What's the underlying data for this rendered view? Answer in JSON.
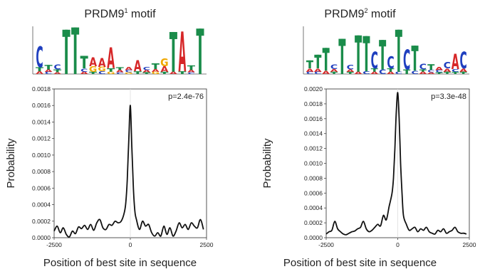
{
  "colors": {
    "A": "#d62728",
    "C": "#1f3fbf",
    "G": "#f0a800",
    "T": "#1a8c4a",
    "line": "#111111",
    "axis": "#444444"
  },
  "chart_data": [
    {
      "type": "line",
      "motif_title": {
        "base": "PRDM9",
        "sup": "1",
        "rest": " motif"
      },
      "motif_letters": [
        {
          "char": "C",
          "h": 0.95,
          "below": [
            [
              "T",
              0.18
            ],
            [
              "A",
              0.12
            ]
          ]
        },
        {
          "char": "T",
          "h": 0.2,
          "below": [
            [
              "A",
              0.1
            ],
            [
              "C",
              0.1
            ]
          ]
        },
        {
          "char": "C",
          "h": 0.22,
          "below": [
            [
              "T",
              0.12
            ],
            [
              "A",
              0.08
            ]
          ]
        },
        {
          "char": "T",
          "h": 1.95,
          "below": []
        },
        {
          "char": "T",
          "h": 2.05,
          "below": []
        },
        {
          "char": "T",
          "h": 0.55,
          "below": [
            [
              "C",
              0.15
            ],
            [
              "A",
              0.1
            ]
          ]
        },
        {
          "char": "A",
          "h": 0.4,
          "below": [
            [
              "G",
              0.25
            ],
            [
              "T",
              0.1
            ]
          ]
        },
        {
          "char": "A",
          "h": 0.4,
          "below": [
            [
              "G",
              0.2
            ],
            [
              "C",
              0.12
            ]
          ]
        },
        {
          "char": "A",
          "h": 0.95,
          "below": [
            [
              "T",
              0.15
            ],
            [
              "G",
              0.1
            ]
          ]
        },
        {
          "char": "T",
          "h": 0.12,
          "below": [
            [
              "A",
              0.1
            ],
            [
              "C",
              0.08
            ]
          ]
        },
        {
          "char": "A",
          "h": 0.14,
          "below": [
            [
              "C",
              0.1
            ],
            [
              "G",
              0.08
            ]
          ]
        },
        {
          "char": "A",
          "h": 0.5,
          "below": [
            [
              "T",
              0.12
            ]
          ]
        },
        {
          "char": "C",
          "h": 0.15,
          "below": [
            [
              "A",
              0.1
            ],
            [
              "T",
              0.08
            ]
          ]
        },
        {
          "char": "T",
          "h": 0.25,
          "below": [
            [
              "A",
              0.12
            ],
            [
              "G",
              0.1
            ]
          ]
        },
        {
          "char": "G",
          "h": 0.35,
          "below": [
            [
              "A",
              0.25
            ],
            [
              "T",
              0.1
            ]
          ]
        },
        {
          "char": "T",
          "h": 1.75,
          "below": [
            [
              "A",
              0.1
            ]
          ]
        },
        {
          "char": "A",
          "h": 1.8,
          "below": [
            [
              "T",
              0.12
            ]
          ]
        },
        {
          "char": "T",
          "h": 0.2,
          "below": [
            [
              "A",
              0.1
            ],
            [
              "C",
              0.08
            ]
          ]
        },
        {
          "char": "T",
          "h": 2.0,
          "below": []
        }
      ],
      "x_ticks": [
        "-2500",
        "0",
        "2500"
      ],
      "ylim": [
        0,
        0.0018
      ],
      "y_ticks": [
        "0.0000",
        "0.0002",
        "0.0004",
        "0.0006",
        "0.0008",
        "0.0010",
        "0.0012",
        "0.0014",
        "0.0016",
        "0.0018"
      ],
      "xlim": [
        -2500,
        2500
      ],
      "pvalue": "p=2.4e-76",
      "ylabel": "Probability",
      "xlabel": "Position of best site in sequence",
      "x": [
        -2500,
        -2400,
        -2300,
        -2200,
        -2100,
        -2000,
        -1900,
        -1800,
        -1700,
        -1600,
        -1500,
        -1400,
        -1300,
        -1200,
        -1100,
        -1000,
        -900,
        -800,
        -700,
        -600,
        -500,
        -400,
        -300,
        -200,
        -150,
        -100,
        -50,
        0,
        50,
        100,
        150,
        200,
        300,
        400,
        500,
        600,
        700,
        800,
        900,
        1000,
        1100,
        1200,
        1300,
        1400,
        1500,
        1600,
        1700,
        1800,
        1900,
        2000,
        2100,
        2200,
        2300,
        2400
      ],
      "y": [
        8e-05,
        0.00014,
        6e-05,
        0.00012,
        4e-05,
        1e-05,
        8e-05,
        5e-05,
        0.00013,
        0.00011,
        0.00015,
        0.0001,
        0.00016,
        9e-05,
        0.00018,
        0.00022,
        0.00012,
        0.0001,
        0.00016,
        0.00015,
        0.0002,
        0.00018,
        0.0002,
        0.0003,
        0.00042,
        0.0007,
        0.0012,
        0.0016,
        0.0011,
        0.0006,
        0.00032,
        0.00022,
        0.0001,
        0.0002,
        0.00014,
        0.00016,
        6e-05,
        2e-05,
        6e-05,
        2e-05,
        0.00014,
        4e-05,
        0.00012,
        2e-05,
        8e-05,
        0.00018,
        0.00012,
        0.00016,
        0.0001,
        0.00018,
        0.00014,
        0.00012,
        0.00022,
        0.0001
      ]
    },
    {
      "type": "line",
      "motif_title": {
        "base": "PRDM9",
        "sup": "2",
        "rest": " motif"
      },
      "motif_letters": [
        {
          "char": "T",
          "h": 0.35,
          "below": [
            [
              "A",
              0.15
            ],
            [
              "C",
              0.1
            ]
          ]
        },
        {
          "char": "T",
          "h": 0.6,
          "below": [
            [
              "A",
              0.15
            ],
            [
              "C",
              0.1
            ]
          ]
        },
        {
          "char": "T",
          "h": 1.0,
          "below": [
            [
              "A",
              0.15
            ]
          ]
        },
        {
          "char": "C",
          "h": 0.2,
          "below": [
            [
              "A",
              0.12
            ],
            [
              "T",
              0.1
            ]
          ]
        },
        {
          "char": "T",
          "h": 1.55,
          "below": []
        },
        {
          "char": "C",
          "h": 0.2,
          "below": [
            [
              "A",
              0.1
            ],
            [
              "T",
              0.1
            ]
          ]
        },
        {
          "char": "T",
          "h": 1.6,
          "below": [
            [
              "A",
              0.1
            ]
          ]
        },
        {
          "char": "T",
          "h": 1.55,
          "below": [
            [
              "C",
              0.12
            ]
          ]
        },
        {
          "char": "C",
          "h": 0.75,
          "below": [
            [
              "T",
              0.15
            ],
            [
              "A",
              0.1
            ]
          ]
        },
        {
          "char": "T",
          "h": 1.3,
          "below": [
            [
              "C",
              0.2
            ]
          ]
        },
        {
          "char": "C",
          "h": 0.55,
          "below": [
            [
              "T",
              0.15
            ],
            [
              "A",
              0.1
            ]
          ]
        },
        {
          "char": "T",
          "h": 1.85,
          "below": [
            [
              "C",
              0.1
            ]
          ]
        },
        {
          "char": "C",
          "h": 0.9,
          "below": [
            [
              "T",
              0.2
            ]
          ]
        },
        {
          "char": "T",
          "h": 1.1,
          "below": [
            [
              "C",
              0.15
            ]
          ]
        },
        {
          "char": "C",
          "h": 0.25,
          "below": [
            [
              "T",
              0.1
            ],
            [
              "A",
              0.1
            ]
          ]
        },
        {
          "char": "T",
          "h": 0.25,
          "below": [
            [
              "C",
              0.1
            ],
            [
              "A",
              0.08
            ]
          ]
        },
        {
          "char": "A",
          "h": 0.15,
          "below": [
            [
              "C",
              0.1
            ],
            [
              "T",
              0.08
            ]
          ]
        },
        {
          "char": "C",
          "h": 0.3,
          "below": [
            [
              "A",
              0.15
            ],
            [
              "T",
              0.1
            ]
          ]
        },
        {
          "char": "A",
          "h": 0.7,
          "below": [
            [
              "C",
              0.12
            ],
            [
              "T",
              0.1
            ]
          ]
        },
        {
          "char": "C",
          "h": 0.75,
          "below": [
            [
              "A",
              0.15
            ],
            [
              "T",
              0.1
            ]
          ]
        }
      ],
      "x_ticks": [
        "-2500",
        "0",
        "2500"
      ],
      "ylim": [
        0,
        0.002
      ],
      "y_ticks": [
        "0.0000",
        "0.0002",
        "0.0004",
        "0.0006",
        "0.0008",
        "0.0010",
        "0.0012",
        "0.0014",
        "0.0016",
        "0.0018",
        "0.0020"
      ],
      "xlim": [
        -2500,
        2500
      ],
      "pvalue": "p=3.3e-48",
      "ylabel": "Probability",
      "xlabel": "Position of best site in sequence",
      "x": [
        -2500,
        -2400,
        -2300,
        -2200,
        -2100,
        -2000,
        -1900,
        -1800,
        -1700,
        -1600,
        -1500,
        -1400,
        -1300,
        -1200,
        -1100,
        -1000,
        -900,
        -800,
        -700,
        -600,
        -500,
        -400,
        -300,
        -200,
        -150,
        -100,
        -50,
        0,
        50,
        100,
        150,
        200,
        300,
        400,
        500,
        600,
        700,
        800,
        900,
        1000,
        1100,
        1200,
        1300,
        1400,
        1500,
        1600,
        1700,
        1800,
        1900,
        2000,
        2100,
        2200,
        2300,
        2400
      ],
      "y": [
        5e-05,
        8e-05,
        0.0001,
        0.00022,
        0.00012,
        8e-05,
        5e-05,
        4e-05,
        6e-05,
        8e-05,
        9e-05,
        0.00012,
        0.00014,
        0.00022,
        0.00012,
        8e-05,
        0.0001,
        0.00014,
        0.00018,
        0.00016,
        0.0003,
        0.00024,
        0.00042,
        0.0006,
        0.0008,
        0.0012,
        0.0017,
        0.00195,
        0.0016,
        0.001,
        0.0006,
        0.0003,
        0.00018,
        0.0001,
        0.00012,
        0.00014,
        8e-05,
        0.00012,
        0.0001,
        0.00014,
        8e-05,
        6e-05,
        5e-05,
        0.0001,
        8e-05,
        0.00012,
        6e-05,
        8e-05,
        0.0001,
        0.00014,
        8e-05,
        6e-05,
        6e-05,
        5e-05
      ]
    }
  ]
}
